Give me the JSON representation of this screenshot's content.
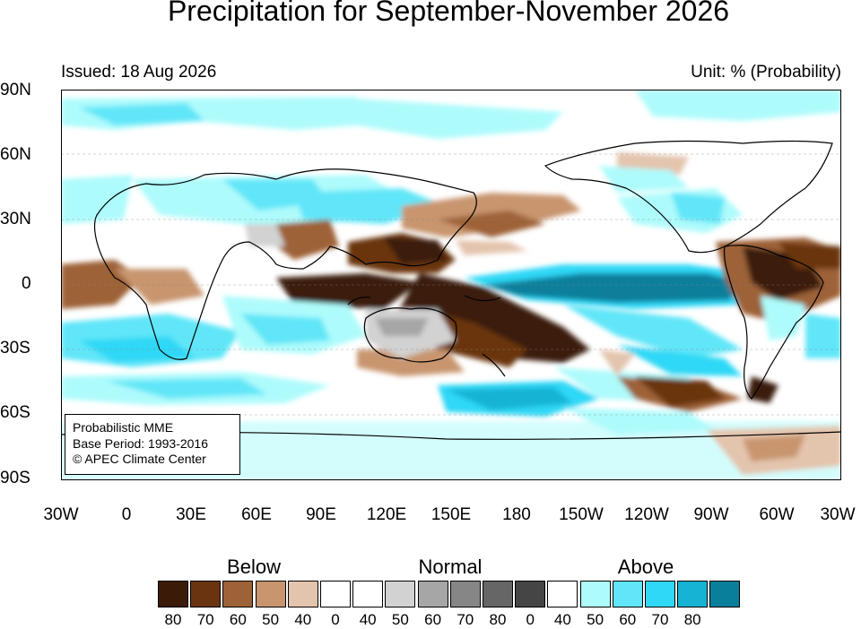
{
  "title": "Precipitation for September-November 2026",
  "issued": "Issued: 18 Aug 2026",
  "unit": "Unit: % (Probability)",
  "lat_labels": [
    "90N",
    "60N",
    "30N",
    "0",
    "30S",
    "60S",
    "90S"
  ],
  "lon_labels": [
    "30W",
    "0",
    "30E",
    "60E",
    "90E",
    "120E",
    "150E",
    "180",
    "150W",
    "120W",
    "90W",
    "60W",
    "30W"
  ],
  "info": {
    "line1": "Probabilistic MME",
    "line2": "Base Period: 1993-2016",
    "line3": "© APEC Climate Center"
  },
  "legend": {
    "groups": [
      "Below",
      "Normal",
      "Above"
    ],
    "below": {
      "labels": [
        "80",
        "70",
        "60",
        "50",
        "40"
      ],
      "colors": [
        "#3b1a08",
        "#6b3411",
        "#9e6238",
        "#c8956e",
        "#e3c4ad"
      ]
    },
    "normal": {
      "labels": [
        "0",
        "40",
        "50",
        "60",
        "70",
        "80"
      ],
      "colors": [
        "#ffffff",
        "#ffffff",
        "#d2d2d2",
        "#a6a6a6",
        "#868686",
        "#666666",
        "#454545"
      ]
    },
    "above": {
      "labels": [
        "0",
        "40",
        "50",
        "60",
        "70",
        "80"
      ],
      "colors": [
        "#ffffff",
        "#aefbfc",
        "#60e6f8",
        "#2fd8f6",
        "#16b3d4",
        "#0a7f9b"
      ]
    }
  }
}
